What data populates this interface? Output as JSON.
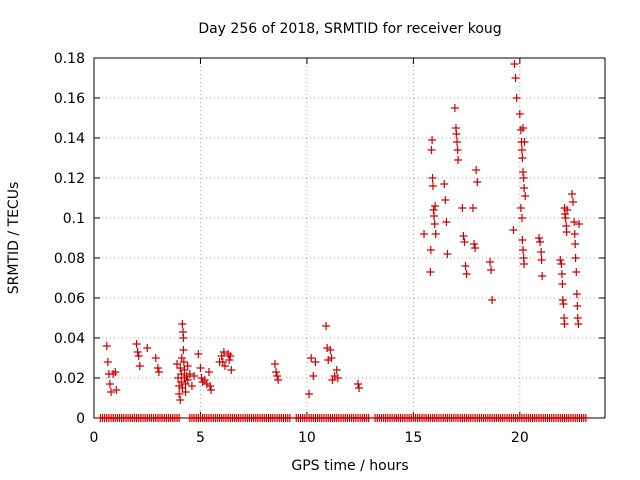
{
  "chart_data": {
    "type": "scatter",
    "title": "Day 256 of 2018, SRMTID for receiver koug",
    "xlabel": "GPS time / hours",
    "ylabel": "SRMTID / TECUs",
    "xlim": [
      0,
      24
    ],
    "ylim": [
      0,
      0.18
    ],
    "xticks": [
      0,
      5,
      10,
      15,
      20
    ],
    "xtick_labels": [
      "0",
      "5",
      "10",
      "15",
      "20"
    ],
    "yticks": [
      0,
      0.02,
      0.04,
      0.06,
      0.08,
      0.1,
      0.12,
      0.14,
      0.16,
      0.18
    ],
    "ytick_labels": [
      "0",
      "0.02",
      "0.04",
      "0.06",
      "0.08",
      "0.1",
      "0.12",
      "0.14",
      "0.16",
      "0.18"
    ],
    "grid": true,
    "marker": "+",
    "color": "#cc0000",
    "series": [
      {
        "name": "SRMTID",
        "points": [
          [
            0.6,
            0.036
          ],
          [
            0.65,
            0.028
          ],
          [
            0.7,
            0.022
          ],
          [
            0.75,
            0.017
          ],
          [
            0.8,
            0.013
          ],
          [
            0.9,
            0.022
          ],
          [
            1.0,
            0.023
          ],
          [
            1.05,
            0.014
          ],
          [
            2.0,
            0.037
          ],
          [
            2.05,
            0.033
          ],
          [
            2.1,
            0.031
          ],
          [
            2.15,
            0.026
          ],
          [
            2.5,
            0.035
          ],
          [
            2.9,
            0.03
          ],
          [
            3.0,
            0.025
          ],
          [
            3.05,
            0.023
          ],
          [
            3.9,
            0.027
          ],
          [
            3.95,
            0.02
          ],
          [
            4.0,
            0.016
          ],
          [
            4.0,
            0.012
          ],
          [
            4.05,
            0.009
          ],
          [
            4.05,
            0.025
          ],
          [
            4.1,
            0.018
          ],
          [
            4.1,
            0.022
          ],
          [
            4.12,
            0.03
          ],
          [
            4.15,
            0.015
          ],
          [
            4.15,
            0.047
          ],
          [
            4.18,
            0.043
          ],
          [
            4.2,
            0.04
          ],
          [
            4.2,
            0.034
          ],
          [
            4.22,
            0.028
          ],
          [
            4.25,
            0.024
          ],
          [
            4.25,
            0.02
          ],
          [
            4.3,
            0.017
          ],
          [
            4.3,
            0.013
          ],
          [
            4.35,
            0.021
          ],
          [
            4.4,
            0.026
          ],
          [
            4.4,
            0.019
          ],
          [
            4.5,
            0.022
          ],
          [
            4.6,
            0.016
          ],
          [
            4.7,
            0.021
          ],
          [
            4.9,
            0.032
          ],
          [
            5.0,
            0.025
          ],
          [
            5.05,
            0.02
          ],
          [
            5.1,
            0.018
          ],
          [
            5.2,
            0.019
          ],
          [
            5.3,
            0.017
          ],
          [
            5.4,
            0.023
          ],
          [
            5.45,
            0.016
          ],
          [
            5.5,
            0.014
          ],
          [
            5.9,
            0.028
          ],
          [
            6.0,
            0.031
          ],
          [
            6.05,
            0.028
          ],
          [
            6.1,
            0.033
          ],
          [
            6.15,
            0.026
          ],
          [
            6.3,
            0.032
          ],
          [
            6.35,
            0.029
          ],
          [
            6.4,
            0.031
          ],
          [
            6.45,
            0.024
          ],
          [
            8.5,
            0.027
          ],
          [
            8.55,
            0.023
          ],
          [
            8.6,
            0.021
          ],
          [
            8.65,
            0.019
          ],
          [
            10.1,
            0.012
          ],
          [
            10.2,
            0.03
          ],
          [
            10.3,
            0.021
          ],
          [
            10.4,
            0.028
          ],
          [
            10.9,
            0.046
          ],
          [
            10.95,
            0.035
          ],
          [
            11.0,
            0.029
          ],
          [
            11.1,
            0.034
          ],
          [
            11.15,
            0.03
          ],
          [
            11.2,
            0.019
          ],
          [
            11.3,
            0.021
          ],
          [
            11.4,
            0.024
          ],
          [
            11.45,
            0.02
          ],
          [
            12.4,
            0.017
          ],
          [
            12.45,
            0.015
          ],
          [
            15.5,
            0.092
          ],
          [
            15.8,
            0.073
          ],
          [
            15.82,
            0.084
          ],
          [
            15.85,
            0.134
          ],
          [
            15.88,
            0.139
          ],
          [
            15.9,
            0.12
          ],
          [
            15.92,
            0.116
          ],
          [
            15.95,
            0.104
          ],
          [
            15.97,
            0.101
          ],
          [
            16.0,
            0.097
          ],
          [
            16.02,
            0.106
          ],
          [
            16.05,
            0.092
          ],
          [
            16.45,
            0.117
          ],
          [
            16.5,
            0.109
          ],
          [
            16.55,
            0.098
          ],
          [
            16.6,
            0.082
          ],
          [
            16.95,
            0.155
          ],
          [
            17.0,
            0.145
          ],
          [
            17.02,
            0.142
          ],
          [
            17.05,
            0.138
          ],
          [
            17.08,
            0.134
          ],
          [
            17.1,
            0.129
          ],
          [
            17.3,
            0.105
          ],
          [
            17.35,
            0.091
          ],
          [
            17.4,
            0.088
          ],
          [
            17.45,
            0.076
          ],
          [
            17.5,
            0.072
          ],
          [
            17.8,
            0.105
          ],
          [
            17.85,
            0.087
          ],
          [
            17.9,
            0.085
          ],
          [
            17.95,
            0.124
          ],
          [
            18.0,
            0.118
          ],
          [
            18.6,
            0.078
          ],
          [
            18.65,
            0.074
          ],
          [
            18.7,
            0.059
          ],
          [
            19.7,
            0.094
          ],
          [
            19.75,
            0.177
          ],
          [
            19.8,
            0.17
          ],
          [
            19.85,
            0.16
          ],
          [
            20.0,
            0.152
          ],
          [
            20.05,
            0.144
          ],
          [
            20.08,
            0.138
          ],
          [
            20.1,
            0.134
          ],
          [
            20.12,
            0.13
          ],
          [
            20.15,
            0.145
          ],
          [
            20.15,
            0.123
          ],
          [
            20.18,
            0.12
          ],
          [
            20.2,
            0.115
          ],
          [
            20.05,
            0.105
          ],
          [
            20.1,
            0.1
          ],
          [
            20.12,
            0.089
          ],
          [
            20.15,
            0.084
          ],
          [
            20.18,
            0.08
          ],
          [
            20.2,
            0.077
          ],
          [
            20.22,
            0.138
          ],
          [
            20.25,
            0.111
          ],
          [
            20.9,
            0.09
          ],
          [
            20.95,
            0.088
          ],
          [
            21.0,
            0.083
          ],
          [
            21.02,
            0.079
          ],
          [
            21.05,
            0.071
          ],
          [
            21.9,
            0.079
          ],
          [
            21.95,
            0.077
          ],
          [
            21.98,
            0.072
          ],
          [
            22.0,
            0.067
          ],
          [
            22.02,
            0.059
          ],
          [
            22.05,
            0.057
          ],
          [
            22.08,
            0.05
          ],
          [
            22.1,
            0.047
          ],
          [
            22.1,
            0.105
          ],
          [
            22.12,
            0.102
          ],
          [
            22.15,
            0.1
          ],
          [
            22.18,
            0.096
          ],
          [
            22.2,
            0.093
          ],
          [
            22.22,
            0.104
          ],
          [
            22.45,
            0.112
          ],
          [
            22.5,
            0.108
          ],
          [
            22.55,
            0.098
          ],
          [
            22.58,
            0.092
          ],
          [
            22.6,
            0.087
          ],
          [
            22.62,
            0.08
          ],
          [
            22.65,
            0.073
          ],
          [
            22.68,
            0.062
          ],
          [
            22.7,
            0.056
          ],
          [
            22.72,
            0.05
          ],
          [
            22.75,
            0.047
          ],
          [
            22.78,
            0.097
          ]
        ]
      }
    ],
    "zero_segments": [
      [
        0.3,
        4.0
      ],
      [
        4.5,
        9.2
      ],
      [
        9.5,
        12.9
      ],
      [
        13.2,
        23.1
      ]
    ]
  }
}
